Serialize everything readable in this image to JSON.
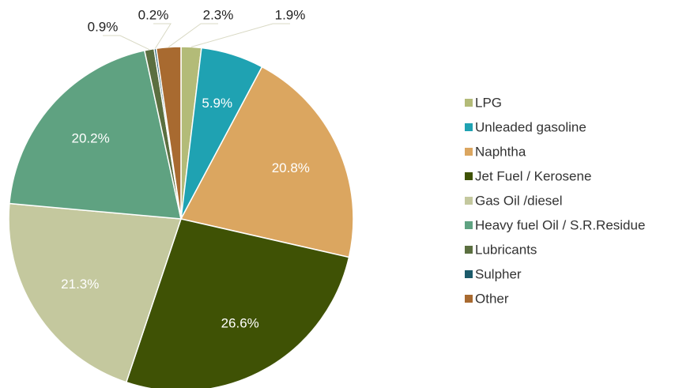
{
  "chart_data": {
    "type": "pie",
    "categories": [
      "LPG",
      "Unleaded gasoline",
      "Naphtha",
      "Jet Fuel / Kerosene",
      "Gas Oil /diesel",
      "Heavy fuel Oil / S.R.Residue",
      "Lubricants",
      "Sulpher",
      "Other"
    ],
    "values": [
      1.9,
      5.9,
      20.8,
      26.6,
      21.3,
      20.2,
      0.9,
      0.2,
      2.3
    ],
    "value_labels": [
      "1.9%",
      "5.9%",
      "20.8%",
      "26.6%",
      "21.3%",
      "20.2%",
      "0.9%",
      "0.2%",
      "2.3%"
    ],
    "colors": [
      "#b3bb78",
      "#1fa2b2",
      "#dba660",
      "#3f5205",
      "#c4c89e",
      "#5fa281",
      "#5b6f40",
      "#1c5a6a",
      "#a86a30"
    ],
    "legend": "right"
  }
}
